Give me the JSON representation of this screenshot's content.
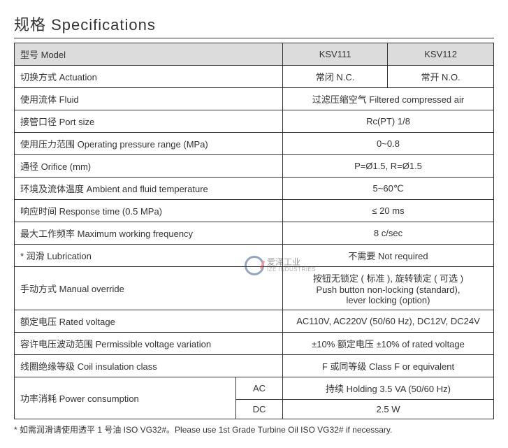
{
  "title": "规格 Specifications",
  "header": {
    "model_label": "型号 Model",
    "model1": "KSV111",
    "model2": "KSV112"
  },
  "rows": {
    "actuation": {
      "label": "切换方式 Actuation",
      "v1": "常闭 N.C.",
      "v2": "常开 N.O."
    },
    "fluid": {
      "label": "使用流体 Fluid",
      "value": "过滤压缩空气 Filtered compressed air"
    },
    "port": {
      "label": "接管口径 Port size",
      "value": "Rc(PT) 1/8"
    },
    "pressure": {
      "label": "使用压力范围 Operating pressure range (MPa)",
      "value": "0~0.8"
    },
    "orifice": {
      "label": "通径 Orifice (mm)",
      "value": "P=Ø1.5, R=Ø1.5"
    },
    "temp": {
      "label": "环境及流体温度 Ambient and fluid temperature",
      "value": "5~60℃"
    },
    "response": {
      "label": "响应时间 Response time (0.5 MPa)",
      "value": "≤ 20 ms"
    },
    "freq": {
      "label": "最大工作频率 Maximum working frequency",
      "value": "8 c/sec"
    },
    "lube": {
      "label": "* 润滑  Lubrication",
      "value": "不需要 Not required"
    },
    "manual": {
      "label": "手动方式 Manual override",
      "value": "按钮无锁定 ( 标准 ), 旋转锁定 ( 可选 )\nPush button non-locking (standard),\nlever locking (option)"
    },
    "voltage": {
      "label": "额定电压 Rated voltage",
      "value": "AC110V, AC220V (50/60 Hz), DC12V, DC24V"
    },
    "variation": {
      "label": "容许电压波动范围 Permissible voltage variation",
      "value": "±10% 额定电压 ±10% of rated voltage"
    },
    "insulation": {
      "label": "线圈绝缘等级 Coil insulation class",
      "value": "F 或同等级 Class F or equivalent"
    },
    "power": {
      "label": "功率消耗 Power consumption",
      "ac_label": "AC",
      "ac_value": "持续 Holding 3.5 VA (50/60 Hz)",
      "dc_label": "DC",
      "dc_value": "2.5 W"
    }
  },
  "footnote": "* 如需润滑请使用透平 1 号油 ISO VG32#。Please use 1st Grade Turbine Oil ISO VG32# if necessary.",
  "watermark": {
    "cn": "爱泽工业",
    "en": "IZE INDUSTRIES"
  },
  "colors": {
    "border": "#333333",
    "header_bg": "#dcdcdc",
    "text": "#333333",
    "background": "#ffffff"
  },
  "font_sizes": {
    "title": 22,
    "table": 13,
    "footnote": 12
  }
}
